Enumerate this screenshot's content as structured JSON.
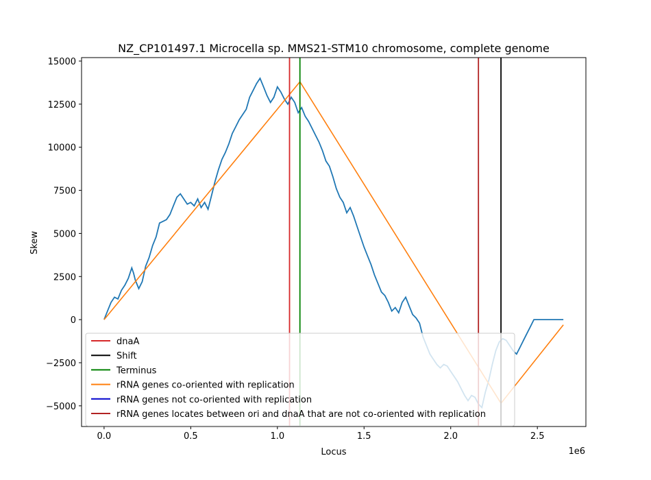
{
  "chart_data": {
    "type": "line",
    "title": "NZ_CP101497.1 Microcella sp. MMS21-STM10 chromosome, complete genome",
    "xlabel": "Locus",
    "ylabel": "Skew",
    "x_offset_label": "1e6",
    "xlim": [
      -0.13,
      2.78
    ],
    "ylim": [
      -6200,
      15200
    ],
    "x_ticks": [
      0.0,
      0.5,
      1.0,
      1.5,
      2.0,
      2.5
    ],
    "x_tick_labels": [
      "0.0",
      "0.5",
      "1.0",
      "1.5",
      "2.0",
      "2.5"
    ],
    "y_ticks": [
      -5000,
      -2500,
      0,
      2500,
      5000,
      7500,
      10000,
      12500,
      15000
    ],
    "y_tick_labels": [
      "−5000",
      "−2500",
      "0",
      "2500",
      "5000",
      "7500",
      "10000",
      "12500",
      "15000"
    ],
    "grid": false,
    "legend_position": "lower-left",
    "skew_series": {
      "color": "#1f77b4",
      "x": [
        0.0,
        0.02,
        0.04,
        0.06,
        0.08,
        0.1,
        0.12,
        0.14,
        0.16,
        0.17,
        0.18,
        0.2,
        0.22,
        0.24,
        0.26,
        0.28,
        0.3,
        0.32,
        0.34,
        0.36,
        0.38,
        0.4,
        0.42,
        0.44,
        0.46,
        0.48,
        0.5,
        0.52,
        0.54,
        0.56,
        0.58,
        0.6,
        0.62,
        0.64,
        0.66,
        0.68,
        0.7,
        0.72,
        0.74,
        0.76,
        0.78,
        0.8,
        0.82,
        0.84,
        0.86,
        0.88,
        0.9,
        0.92,
        0.94,
        0.96,
        0.98,
        1.0,
        1.02,
        1.04,
        1.06,
        1.08,
        1.1,
        1.12,
        1.14,
        1.16,
        1.18,
        1.2,
        1.22,
        1.24,
        1.26,
        1.28,
        1.3,
        1.32,
        1.34,
        1.36,
        1.38,
        1.4,
        1.42,
        1.44,
        1.46,
        1.48,
        1.5,
        1.52,
        1.54,
        1.56,
        1.58,
        1.6,
        1.62,
        1.64,
        1.66,
        1.68,
        1.7,
        1.72,
        1.74,
        1.76,
        1.78,
        1.8,
        1.82,
        1.84,
        1.86,
        1.88,
        1.9,
        1.92,
        1.94,
        1.96,
        1.98,
        2.0,
        2.02,
        2.04,
        2.06,
        2.08,
        2.1,
        2.12,
        2.14,
        2.16,
        2.18,
        2.2,
        2.22,
        2.24,
        2.26,
        2.28,
        2.3,
        2.32,
        2.34,
        2.36,
        2.38,
        2.4,
        2.42,
        2.44,
        2.46,
        2.48,
        2.5,
        2.52,
        2.54,
        2.56,
        2.58,
        2.6,
        2.62,
        2.64,
        2.65
      ],
      "y": [
        0,
        500,
        1000,
        1300,
        1200,
        1700,
        2000,
        2400,
        3000,
        2700,
        2300,
        1800,
        2200,
        3100,
        3600,
        4300,
        4800,
        5600,
        5700,
        5800,
        6100,
        6600,
        7100,
        7300,
        7000,
        6700,
        6800,
        6600,
        7000,
        6500,
        6800,
        6400,
        7200,
        8000,
        8700,
        9300,
        9700,
        10200,
        10800,
        11200,
        11600,
        11900,
        12200,
        12900,
        13300,
        13700,
        14000,
        13500,
        13000,
        12600,
        12900,
        13500,
        13200,
        12800,
        12500,
        12900,
        12600,
        12000,
        12300,
        11800,
        11500,
        11100,
        10700,
        10300,
        9800,
        9200,
        8900,
        8300,
        7600,
        7100,
        6800,
        6200,
        6500,
        6000,
        5400,
        4800,
        4200,
        3700,
        3200,
        2600,
        2100,
        1600,
        1400,
        1000,
        500,
        700,
        400,
        1000,
        1300,
        800,
        300,
        100,
        -200,
        -1000,
        -1500,
        -2000,
        -2300,
        -2600,
        -2800,
        -2600,
        -2700,
        -3000,
        -3300,
        -3600,
        -4000,
        -4400,
        -4700,
        -4400,
        -4500,
        -4900,
        -5100,
        -4200,
        -3500,
        -2600,
        -1800,
        -1300,
        -1100,
        -1200,
        -1500,
        -1800,
        -2000,
        -1600,
        -1200,
        -800,
        -400,
        0,
        0.0,
        0.0,
        0.0,
        0.0,
        0.0,
        0.0,
        0.0,
        0.0,
        0.0
      ]
    },
    "replication_series": {
      "name": "rRNA genes co-oriented with replication",
      "color": "#ff7f0e",
      "x": [
        0.0,
        1.13,
        2.29,
        2.65
      ],
      "y": [
        0,
        13800,
        -4850,
        -300
      ]
    },
    "vertical_lines": [
      {
        "name": "dnaA",
        "x": 1.07,
        "color": "#d62728"
      },
      {
        "name": "Shift",
        "x": 2.29,
        "color": "#000000"
      },
      {
        "name": "Terminus",
        "x": 1.13,
        "color": "#008000"
      },
      {
        "name": "rRNA genes locates between ori and dnaA that are not co-oriented with replication",
        "x": 2.16,
        "color": "#b22222"
      }
    ],
    "legend": [
      {
        "label": "dnaA",
        "color": "#d62728"
      },
      {
        "label": "Shift",
        "color": "#000000"
      },
      {
        "label": "Terminus",
        "color": "#008000"
      },
      {
        "label": "rRNA genes co-oriented with replication",
        "color": "#ff7f0e"
      },
      {
        "label": "rRNA genes not co-oriented with replication",
        "color": "#0000cd"
      },
      {
        "label": "rRNA genes locates between ori and dnaA that are not co-oriented with replication",
        "color": "#b22222"
      }
    ]
  }
}
